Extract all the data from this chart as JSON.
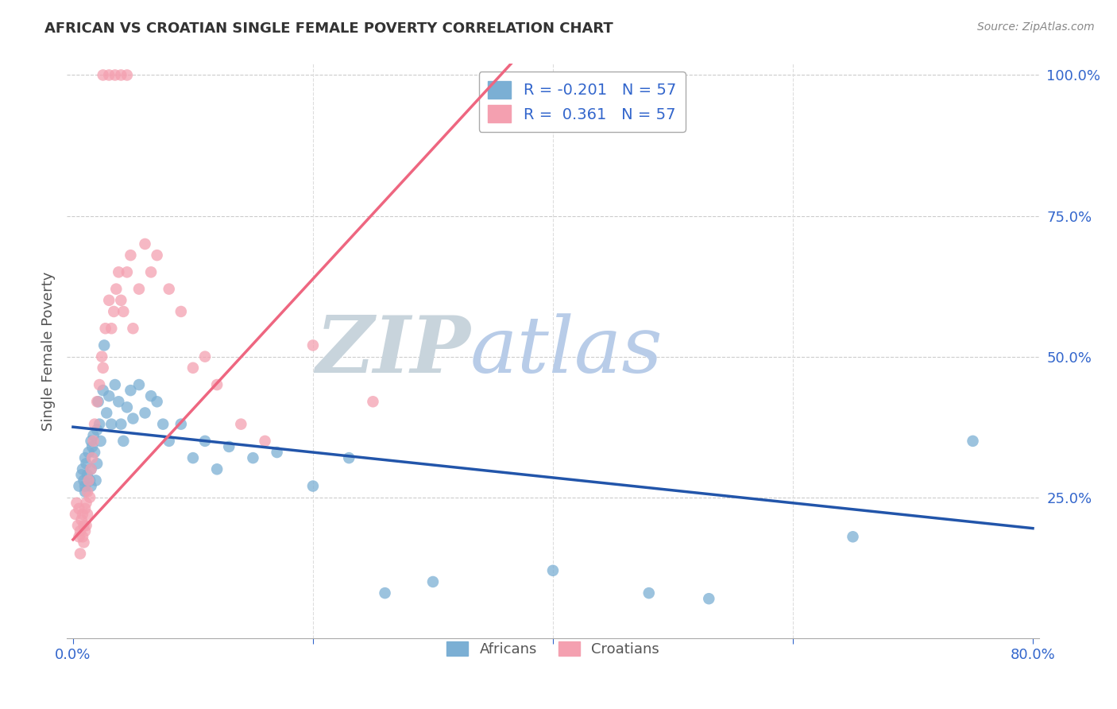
{
  "title": "AFRICAN VS CROATIAN SINGLE FEMALE POVERTY CORRELATION CHART",
  "source": "Source: ZipAtlas.com",
  "ylabel": "Single Female Poverty",
  "xlim": [
    -0.005,
    0.805
  ],
  "ylim": [
    0.0,
    1.02
  ],
  "legend_r_african": "-0.201",
  "legend_n_african": "57",
  "legend_r_croatian": " 0.361",
  "legend_n_croatian": "57",
  "african_color": "#7BAFD4",
  "croatian_color": "#F4A0B0",
  "african_line_color": "#2255AA",
  "croatian_line_color": "#EE6680",
  "watermark_zip": "ZIP",
  "watermark_atlas": "atlas",
  "watermark_zip_color": "#C8D4DC",
  "watermark_atlas_color": "#B8CCE8",
  "african_x": [
    0.005,
    0.007,
    0.008,
    0.009,
    0.01,
    0.01,
    0.01,
    0.011,
    0.012,
    0.013,
    0.014,
    0.015,
    0.015,
    0.015,
    0.016,
    0.017,
    0.018,
    0.019,
    0.02,
    0.02,
    0.021,
    0.022,
    0.023,
    0.025,
    0.026,
    0.028,
    0.03,
    0.032,
    0.035,
    0.038,
    0.04,
    0.042,
    0.045,
    0.048,
    0.05,
    0.055,
    0.06,
    0.065,
    0.07,
    0.075,
    0.08,
    0.09,
    0.1,
    0.11,
    0.12,
    0.13,
    0.15,
    0.17,
    0.2,
    0.23,
    0.26,
    0.3,
    0.4,
    0.48,
    0.53,
    0.65,
    0.75
  ],
  "african_y": [
    0.27,
    0.29,
    0.3,
    0.28,
    0.32,
    0.27,
    0.26,
    0.31,
    0.29,
    0.33,
    0.28,
    0.35,
    0.3,
    0.27,
    0.34,
    0.36,
    0.33,
    0.28,
    0.37,
    0.31,
    0.42,
    0.38,
    0.35,
    0.44,
    0.52,
    0.4,
    0.43,
    0.38,
    0.45,
    0.42,
    0.38,
    0.35,
    0.41,
    0.44,
    0.39,
    0.45,
    0.4,
    0.43,
    0.42,
    0.38,
    0.35,
    0.38,
    0.32,
    0.35,
    0.3,
    0.34,
    0.32,
    0.33,
    0.27,
    0.32,
    0.08,
    0.1,
    0.12,
    0.08,
    0.07,
    0.18,
    0.35
  ],
  "croatian_x": [
    0.002,
    0.003,
    0.004,
    0.005,
    0.005,
    0.006,
    0.006,
    0.007,
    0.008,
    0.008,
    0.009,
    0.009,
    0.01,
    0.01,
    0.011,
    0.011,
    0.012,
    0.012,
    0.013,
    0.014,
    0.015,
    0.016,
    0.017,
    0.018,
    0.02,
    0.022,
    0.024,
    0.025,
    0.027,
    0.03,
    0.032,
    0.034,
    0.036,
    0.038,
    0.04,
    0.042,
    0.045,
    0.048,
    0.05,
    0.055,
    0.06,
    0.065,
    0.07,
    0.08,
    0.09,
    0.1,
    0.11,
    0.12,
    0.14,
    0.16,
    0.025,
    0.03,
    0.035,
    0.04,
    0.045,
    0.2,
    0.25
  ],
  "croatian_y": [
    0.22,
    0.24,
    0.2,
    0.18,
    0.23,
    0.19,
    0.15,
    0.21,
    0.22,
    0.18,
    0.17,
    0.2,
    0.23,
    0.19,
    0.24,
    0.2,
    0.26,
    0.22,
    0.28,
    0.25,
    0.3,
    0.32,
    0.35,
    0.38,
    0.42,
    0.45,
    0.5,
    0.48,
    0.55,
    0.6,
    0.55,
    0.58,
    0.62,
    0.65,
    0.6,
    0.58,
    0.65,
    0.68,
    0.55,
    0.62,
    0.7,
    0.65,
    0.68,
    0.62,
    0.58,
    0.48,
    0.5,
    0.45,
    0.38,
    0.35,
    1.0,
    1.0,
    1.0,
    1.0,
    1.0,
    0.52,
    0.42
  ],
  "african_trend": [
    0.0,
    0.8,
    0.375,
    0.195
  ],
  "croatian_trend_x": [
    0.0,
    0.365
  ],
  "croatian_trend_y": [
    0.175,
    1.02
  ]
}
